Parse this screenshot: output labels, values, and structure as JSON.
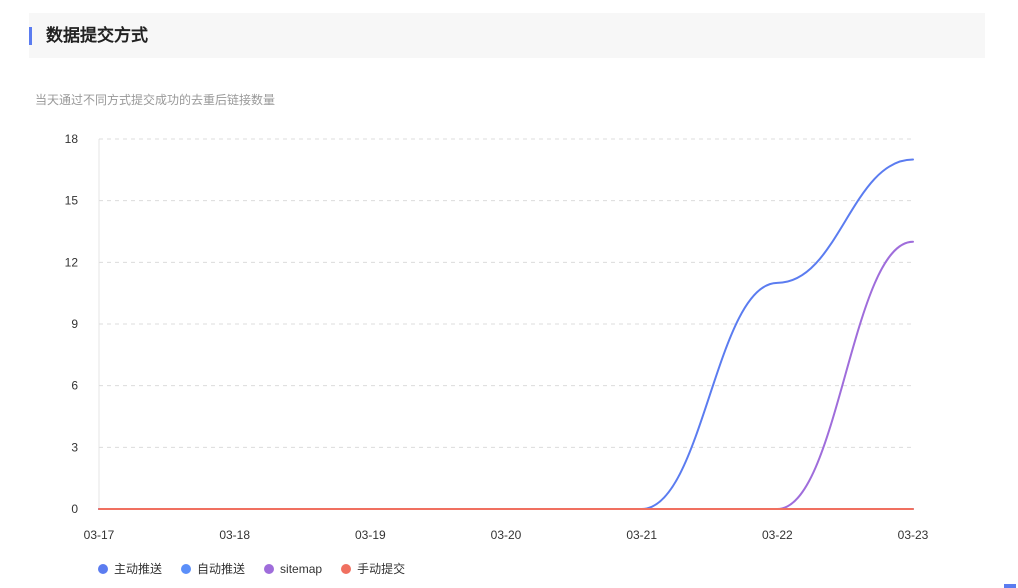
{
  "header": {
    "title": "数据提交方式"
  },
  "subtitle": "当天通过不同方式提交成功的去重后链接数量",
  "chart_data": {
    "type": "line",
    "categories": [
      "03-17",
      "03-18",
      "03-19",
      "03-20",
      "03-21",
      "03-22",
      "03-23"
    ],
    "series": [
      {
        "name": "主动推送",
        "color": "#5b7cf0",
        "values": [
          0,
          0,
          0,
          0,
          0,
          11,
          17
        ]
      },
      {
        "name": "自动推送",
        "color": "#5b8ff9",
        "values": [
          0,
          0,
          0,
          0,
          0,
          0,
          0
        ]
      },
      {
        "name": "sitemap",
        "color": "#9f6ddb",
        "values": [
          0,
          0,
          0,
          0,
          0,
          0,
          13
        ]
      },
      {
        "name": "手动提交",
        "color": "#f07060",
        "values": [
          0,
          0,
          0,
          0,
          0,
          0,
          0
        ]
      }
    ],
    "yticks": [
      0,
      3,
      6,
      9,
      12,
      15,
      18
    ],
    "ylim": [
      0,
      18
    ],
    "grid": true,
    "smooth": true,
    "legend_position": "bottom-left"
  }
}
